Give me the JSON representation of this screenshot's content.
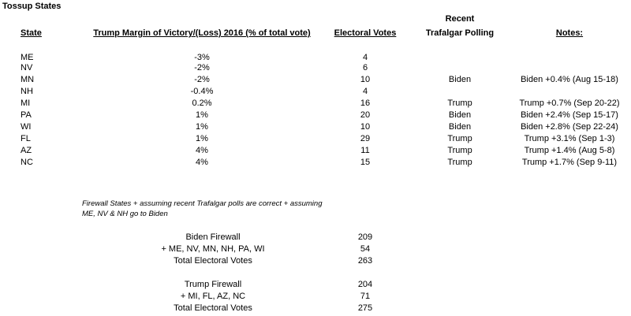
{
  "title": "Tossup States",
  "headers": {
    "state": "State",
    "margin": "Trump Margin of Victory/(Loss) 2016 (% of total vote)",
    "ev": "Electoral Votes",
    "poll_line1": "Recent",
    "poll_line2": "Trafalgar Polling",
    "notes": "Notes:"
  },
  "rows": [
    {
      "state": "ME",
      "margin": "-3%",
      "ev": "4",
      "poll": "",
      "note": ""
    },
    {
      "state": "NV",
      "margin": "-2%",
      "ev": "6",
      "poll": "",
      "note": ""
    },
    {
      "state": "MN",
      "margin": "-2%",
      "ev": "10",
      "poll": "Biden",
      "note": "Biden +0.4% (Aug 15-18)"
    },
    {
      "state": "NH",
      "margin": "-0.4%",
      "ev": "4",
      "poll": "",
      "note": ""
    },
    {
      "state": "MI",
      "margin": "0.2%",
      "ev": "16",
      "poll": "Trump",
      "note": "Trump +0.7% (Sep 20-22)"
    },
    {
      "state": "PA",
      "margin": "1%",
      "ev": "20",
      "poll": "Biden",
      "note": "Biden +2.4% (Sep 15-17)"
    },
    {
      "state": "WI",
      "margin": "1%",
      "ev": "10",
      "poll": "Biden",
      "note": "Biden +2.8% (Sep 22-24)"
    },
    {
      "state": "FL",
      "margin": "1%",
      "ev": "29",
      "poll": "Trump",
      "note": "Trump +3.1% (Sep 1-3)"
    },
    {
      "state": "AZ",
      "margin": "4%",
      "ev": "11",
      "poll": "Trump",
      "note": "Trump +1.4% (Aug 5-8)"
    },
    {
      "state": "NC",
      "margin": "4%",
      "ev": "15",
      "poll": "Trump",
      "note": "Trump +1.7% (Sep 9-11)"
    }
  ],
  "assumption_note": "Firewall States + assuming recent Trafalgar polls are correct + assuming ME, NV & NH go to Biden",
  "biden": {
    "firewall_label": "Biden Firewall",
    "firewall_value": "209",
    "add_label": "+ ME, NV, MN, NH, PA, WI",
    "add_value": "54",
    "total_label": "Total Electoral Votes",
    "total_value": "263"
  },
  "trump": {
    "firewall_label": "Trump Firewall",
    "firewall_value": "204",
    "add_label": "+ MI, FL, AZ, NC",
    "add_value": "71",
    "total_label": "Total Electoral Votes",
    "total_value": "275"
  }
}
